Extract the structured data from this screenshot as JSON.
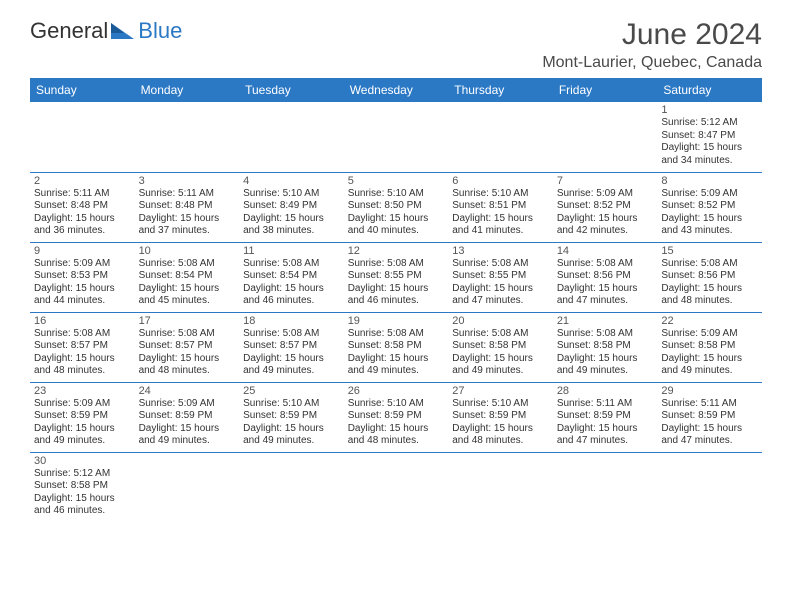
{
  "brand": {
    "name1": "General",
    "name2": "Blue",
    "color": "#2b78c5"
  },
  "title": "June 2024",
  "location": "Mont-Laurier, Quebec, Canada",
  "days_of_week": [
    "Sunday",
    "Monday",
    "Tuesday",
    "Wednesday",
    "Thursday",
    "Friday",
    "Saturday"
  ],
  "calendar": {
    "type": "table",
    "header_bg": "#2b78c5",
    "header_text_color": "#ffffff",
    "border_color": "#2b78c5",
    "background_color": "#ffffff",
    "body_text_color": "#333333",
    "daynum_fontsize": 11,
    "body_fontsize": 10,
    "header_fontsize": 12,
    "title_fontsize": 30,
    "location_fontsize": 16,
    "columns": 7,
    "rows": 6,
    "start_day_index": 6,
    "days": [
      {
        "n": 1,
        "sunrise": "5:12 AM",
        "sunset": "8:47 PM",
        "dh": 15,
        "dm": 34
      },
      {
        "n": 2,
        "sunrise": "5:11 AM",
        "sunset": "8:48 PM",
        "dh": 15,
        "dm": 36
      },
      {
        "n": 3,
        "sunrise": "5:11 AM",
        "sunset": "8:48 PM",
        "dh": 15,
        "dm": 37
      },
      {
        "n": 4,
        "sunrise": "5:10 AM",
        "sunset": "8:49 PM",
        "dh": 15,
        "dm": 38
      },
      {
        "n": 5,
        "sunrise": "5:10 AM",
        "sunset": "8:50 PM",
        "dh": 15,
        "dm": 40
      },
      {
        "n": 6,
        "sunrise": "5:10 AM",
        "sunset": "8:51 PM",
        "dh": 15,
        "dm": 41
      },
      {
        "n": 7,
        "sunrise": "5:09 AM",
        "sunset": "8:52 PM",
        "dh": 15,
        "dm": 42
      },
      {
        "n": 8,
        "sunrise": "5:09 AM",
        "sunset": "8:52 PM",
        "dh": 15,
        "dm": 43
      },
      {
        "n": 9,
        "sunrise": "5:09 AM",
        "sunset": "8:53 PM",
        "dh": 15,
        "dm": 44
      },
      {
        "n": 10,
        "sunrise": "5:08 AM",
        "sunset": "8:54 PM",
        "dh": 15,
        "dm": 45
      },
      {
        "n": 11,
        "sunrise": "5:08 AM",
        "sunset": "8:54 PM",
        "dh": 15,
        "dm": 46
      },
      {
        "n": 12,
        "sunrise": "5:08 AM",
        "sunset": "8:55 PM",
        "dh": 15,
        "dm": 46
      },
      {
        "n": 13,
        "sunrise": "5:08 AM",
        "sunset": "8:55 PM",
        "dh": 15,
        "dm": 47
      },
      {
        "n": 14,
        "sunrise": "5:08 AM",
        "sunset": "8:56 PM",
        "dh": 15,
        "dm": 47
      },
      {
        "n": 15,
        "sunrise": "5:08 AM",
        "sunset": "8:56 PM",
        "dh": 15,
        "dm": 48
      },
      {
        "n": 16,
        "sunrise": "5:08 AM",
        "sunset": "8:57 PM",
        "dh": 15,
        "dm": 48
      },
      {
        "n": 17,
        "sunrise": "5:08 AM",
        "sunset": "8:57 PM",
        "dh": 15,
        "dm": 48
      },
      {
        "n": 18,
        "sunrise": "5:08 AM",
        "sunset": "8:57 PM",
        "dh": 15,
        "dm": 49
      },
      {
        "n": 19,
        "sunrise": "5:08 AM",
        "sunset": "8:58 PM",
        "dh": 15,
        "dm": 49
      },
      {
        "n": 20,
        "sunrise": "5:08 AM",
        "sunset": "8:58 PM",
        "dh": 15,
        "dm": 49
      },
      {
        "n": 21,
        "sunrise": "5:08 AM",
        "sunset": "8:58 PM",
        "dh": 15,
        "dm": 49
      },
      {
        "n": 22,
        "sunrise": "5:09 AM",
        "sunset": "8:58 PM",
        "dh": 15,
        "dm": 49
      },
      {
        "n": 23,
        "sunrise": "5:09 AM",
        "sunset": "8:59 PM",
        "dh": 15,
        "dm": 49
      },
      {
        "n": 24,
        "sunrise": "5:09 AM",
        "sunset": "8:59 PM",
        "dh": 15,
        "dm": 49
      },
      {
        "n": 25,
        "sunrise": "5:10 AM",
        "sunset": "8:59 PM",
        "dh": 15,
        "dm": 49
      },
      {
        "n": 26,
        "sunrise": "5:10 AM",
        "sunset": "8:59 PM",
        "dh": 15,
        "dm": 48
      },
      {
        "n": 27,
        "sunrise": "5:10 AM",
        "sunset": "8:59 PM",
        "dh": 15,
        "dm": 48
      },
      {
        "n": 28,
        "sunrise": "5:11 AM",
        "sunset": "8:59 PM",
        "dh": 15,
        "dm": 47
      },
      {
        "n": 29,
        "sunrise": "5:11 AM",
        "sunset": "8:59 PM",
        "dh": 15,
        "dm": 47
      },
      {
        "n": 30,
        "sunrise": "5:12 AM",
        "sunset": "8:58 PM",
        "dh": 15,
        "dm": 46
      }
    ]
  },
  "labels": {
    "sunrise": "Sunrise:",
    "sunset": "Sunset:",
    "daylight": "Daylight:",
    "hours": "hours",
    "and": "and",
    "minutes": "minutes."
  }
}
